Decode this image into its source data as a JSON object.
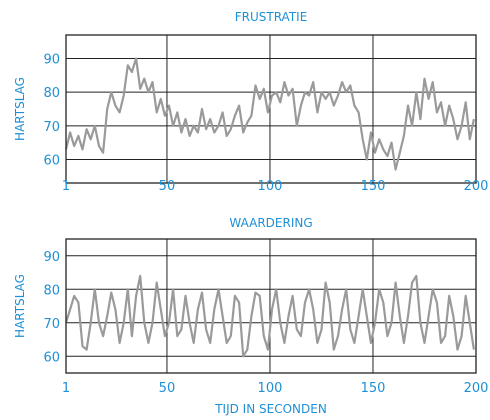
{
  "colors": {
    "label": "#1e90d6",
    "frame": "#222222",
    "grid": "#222222",
    "line": "#9a9a9a"
  },
  "xlabel": "TIJD IN SECONDEN",
  "chart_data": [
    {
      "type": "line",
      "title": "FRUSTRATIE",
      "ylabel": "HARTSLAG",
      "xlim": [
        1,
        200
      ],
      "ylim": [
        53,
        97
      ],
      "xticks": [
        "1",
        "50",
        "100",
        "150",
        "200"
      ],
      "xtick_values": [
        1,
        50,
        100,
        150,
        200
      ],
      "yticks": [
        "90",
        "80",
        "70",
        "60"
      ],
      "ytick_values": [
        90,
        80,
        70,
        60
      ],
      "grid": true,
      "series": [
        {
          "x": [
            1,
            3,
            5,
            7,
            9,
            11,
            13,
            15,
            17,
            19,
            21,
            23,
            25,
            27,
            29,
            31,
            33,
            35,
            37,
            39,
            41,
            43,
            45,
            47,
            49,
            51,
            53,
            55,
            57,
            59,
            61,
            63,
            65,
            67,
            69,
            71,
            73,
            75,
            77,
            79,
            81,
            83,
            85,
            87,
            89,
            91,
            93,
            95,
            97,
            99,
            101,
            103,
            105,
            107,
            109,
            111,
            113,
            115,
            117,
            119,
            121,
            123,
            125,
            127,
            129,
            131,
            133,
            135,
            137,
            139,
            141,
            143,
            145,
            147,
            149,
            151,
            153,
            155,
            157,
            159,
            161,
            163,
            165,
            167,
            169,
            171,
            173,
            175,
            177,
            179,
            181,
            183,
            185,
            187,
            189,
            191,
            193,
            195,
            197,
            199
          ],
          "y": [
            63,
            68,
            64,
            67,
            63,
            69,
            66,
            70,
            64,
            62,
            75,
            80,
            76,
            74,
            79,
            88,
            86,
            90,
            81,
            84,
            80,
            83,
            74,
            78,
            73,
            76,
            70,
            74,
            68,
            72,
            67,
            70,
            68,
            75,
            69,
            72,
            68,
            70,
            74,
            67,
            69,
            73,
            76,
            68,
            71,
            73,
            82,
            78,
            81,
            74,
            79,
            80,
            77,
            83,
            79,
            81,
            70,
            76,
            80,
            79,
            83,
            74,
            80,
            78,
            80,
            76,
            79,
            83,
            80,
            82,
            76,
            74,
            66,
            60,
            68,
            62,
            66,
            63,
            61,
            65,
            57,
            62,
            67,
            76,
            70,
            80,
            72,
            84,
            78,
            83,
            74,
            77,
            70,
            76,
            72,
            66,
            70,
            77,
            66,
            72
          ]
        }
      ]
    },
    {
      "type": "line",
      "title": "WAARDERING",
      "ylabel": "HARTSLAG",
      "xlim": [
        1,
        200
      ],
      "ylim": [
        55,
        95
      ],
      "xticks": [
        "1",
        "50",
        "100",
        "150",
        "200"
      ],
      "xtick_values": [
        1,
        50,
        100,
        150,
        200
      ],
      "yticks": [
        "90",
        "80",
        "70",
        "60"
      ],
      "ytick_values": [
        90,
        80,
        70,
        60
      ],
      "grid": true,
      "series": [
        {
          "x": [
            1,
            3,
            5,
            7,
            9,
            11,
            13,
            15,
            17,
            19,
            21,
            23,
            25,
            27,
            29,
            31,
            33,
            35,
            37,
            39,
            41,
            43,
            45,
            47,
            49,
            51,
            53,
            55,
            57,
            59,
            61,
            63,
            65,
            67,
            69,
            71,
            73,
            75,
            77,
            79,
            81,
            83,
            85,
            87,
            89,
            91,
            93,
            95,
            97,
            99,
            101,
            103,
            105,
            107,
            109,
            111,
            113,
            115,
            117,
            119,
            121,
            123,
            125,
            127,
            129,
            131,
            133,
            135,
            137,
            139,
            141,
            143,
            145,
            147,
            149,
            151,
            153,
            155,
            157,
            159,
            161,
            163,
            165,
            167,
            169,
            171,
            173,
            175,
            177,
            179,
            181,
            183,
            185,
            187,
            189,
            191,
            193,
            195,
            197,
            199
          ],
          "y": [
            70,
            74,
            78,
            76,
            63,
            62,
            70,
            80,
            70,
            66,
            72,
            79,
            74,
            64,
            70,
            80,
            66,
            78,
            84,
            70,
            64,
            70,
            82,
            74,
            66,
            70,
            80,
            66,
            68,
            78,
            70,
            64,
            74,
            79,
            68,
            64,
            74,
            80,
            72,
            64,
            66,
            78,
            76,
            60,
            62,
            72,
            79,
            78,
            66,
            62,
            74,
            80,
            70,
            64,
            72,
            78,
            68,
            66,
            76,
            80,
            74,
            64,
            68,
            82,
            76,
            62,
            66,
            74,
            80,
            68,
            64,
            72,
            80,
            72,
            64,
            70,
            80,
            76,
            66,
            70,
            82,
            72,
            64,
            72,
            82,
            84,
            70,
            64,
            72,
            80,
            76,
            64,
            66,
            78,
            72,
            62,
            66,
            78,
            70,
            62
          ]
        }
      ]
    }
  ]
}
